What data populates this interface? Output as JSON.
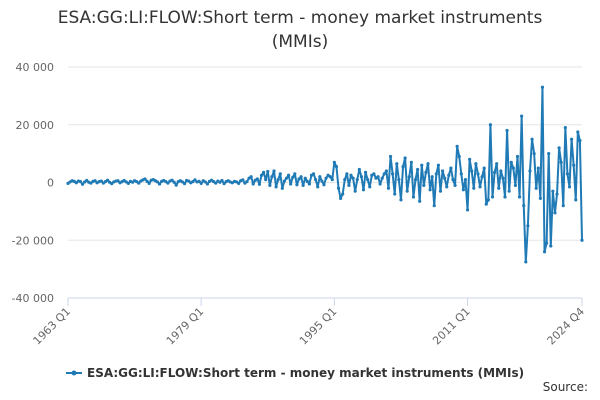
{
  "chart_data": {
    "type": "line",
    "title": "ESA:GG:LI:FLOW:Short term - money market instruments (MMIs)",
    "source": "Source:",
    "categories": [
      "1963 Q1",
      null,
      null,
      null,
      null,
      null,
      null,
      null,
      null,
      null,
      null,
      null,
      null,
      null,
      null,
      null,
      null,
      null,
      null,
      null,
      null,
      null,
      null,
      null,
      null,
      null,
      null,
      null,
      null,
      null,
      null,
      null,
      null,
      null,
      null,
      null,
      null,
      null,
      null,
      null,
      null,
      null,
      null,
      null,
      null,
      null,
      null,
      null,
      null,
      null,
      null,
      null,
      null,
      null,
      null,
      null,
      null,
      null,
      null,
      null,
      null,
      null,
      null,
      null,
      "1979 Q1",
      null,
      null,
      null,
      null,
      null,
      null,
      null,
      null,
      null,
      null,
      null,
      null,
      null,
      null,
      null,
      null,
      null,
      null,
      null,
      null,
      null,
      null,
      null,
      null,
      null,
      null,
      null,
      null,
      null,
      null,
      null,
      null,
      null,
      null,
      null,
      null,
      null,
      null,
      null,
      null,
      null,
      null,
      null,
      null,
      null,
      null,
      null,
      null,
      null,
      null,
      null,
      null,
      null,
      null,
      null,
      null,
      null,
      null,
      null,
      null,
      null,
      null,
      null,
      "1995 Q1",
      null,
      null,
      null,
      null,
      null,
      null,
      null,
      null,
      null,
      null,
      null,
      null,
      null,
      null,
      null,
      null,
      null,
      null,
      null,
      null,
      null,
      null,
      null,
      null,
      null,
      null,
      null,
      null,
      null,
      null,
      null,
      null,
      null,
      null,
      null,
      null,
      null,
      null,
      null,
      null,
      null,
      null,
      null,
      null,
      null,
      null,
      null,
      null,
      null,
      null,
      null,
      null,
      null,
      null,
      null,
      null,
      null,
      null,
      null,
      null,
      null,
      null,
      null,
      "2011 Q1",
      null,
      null,
      null,
      null,
      null,
      null,
      null,
      null,
      null,
      null,
      null,
      null,
      null,
      null,
      null,
      null,
      null,
      null,
      null,
      null,
      null,
      null,
      null,
      null,
      null,
      null,
      null,
      null,
      null,
      null,
      null,
      null,
      null,
      null,
      null,
      null,
      null,
      null,
      null,
      null,
      null,
      null,
      null,
      null,
      null,
      null,
      null,
      null,
      null,
      null,
      null,
      null,
      null,
      null,
      "2024 Q4"
    ],
    "series": [
      {
        "name": "ESA:GG:LI:FLOW:Short term - money market instruments (MMIs)",
        "color": "#1f7ab5",
        "values": [
          -300,
          200,
          600,
          400,
          -100,
          500,
          300,
          -600,
          200,
          700,
          100,
          -200,
          400,
          600,
          -100,
          300,
          500,
          -200,
          300,
          800,
          100,
          -400,
          200,
          500,
          600,
          -100,
          300,
          700,
          200,
          -300,
          400,
          100,
          600,
          300,
          -200,
          500,
          900,
          1200,
          400,
          -300,
          800,
          1000,
          600,
          200,
          -500,
          400,
          700,
          300,
          -200,
          500,
          800,
          100,
          -900,
          300,
          600,
          200,
          -400,
          700,
          500,
          -100,
          300,
          900,
          200,
          400,
          -300,
          600,
          200,
          -500,
          400,
          800,
          300,
          -200,
          500,
          100,
          700,
          -400,
          300,
          600,
          200,
          -100,
          400,
          200,
          -300,
          600,
          900,
          -200,
          300,
          1500,
          2000,
          -500,
          800,
          1200,
          -600,
          2500,
          3500,
          1000,
          3800,
          -1000,
          2000,
          4000,
          -1500,
          1000,
          3000,
          -2000,
          500,
          1500,
          2500,
          -500,
          1800,
          3000,
          -800,
          1200,
          2000,
          -1000,
          1500,
          400,
          -500,
          2500,
          3000,
          1000,
          -1500,
          2000,
          500,
          -800,
          1500,
          2500,
          2000,
          1000,
          7000,
          5500,
          -2000,
          -5500,
          -4000,
          1000,
          3000,
          -1000,
          2500,
          1500,
          -3000,
          1000,
          4500,
          2000,
          -2500,
          3500,
          1000,
          -1500,
          2500,
          3000,
          1500,
          2000,
          -500,
          1500,
          3000,
          4000,
          -2000,
          9000,
          3000,
          -4000,
          6500,
          1000,
          -6000,
          5500,
          8500,
          -3000,
          2000,
          7000,
          -5000,
          1000,
          4500,
          -6500,
          6000,
          -1000,
          3500,
          6500,
          -2500,
          2000,
          -8000,
          3000,
          6000,
          -3000,
          4000,
          1500,
          -1500,
          2500,
          5000,
          1000,
          -1000,
          12500,
          9000,
          3000,
          -2500,
          1000,
          -9500,
          8000,
          4000,
          -2000,
          6500,
          3000,
          -1500,
          2000,
          5000,
          -7500,
          -6000,
          20000,
          -5000,
          3500,
          6500,
          -2000,
          4000,
          1500,
          -5000,
          18000,
          -3000,
          7000,
          5000,
          -1000,
          9000,
          -5000,
          23000,
          -8000,
          -27500,
          -15000,
          4000,
          15000,
          10000,
          -2000,
          5000,
          -5500,
          33000,
          -24000,
          -21000,
          10000,
          -22000,
          -3000,
          -10500,
          -4000,
          12000,
          7000,
          -8000,
          19000,
          3000,
          -1500,
          15000,
          6000,
          -6000,
          17500,
          14500,
          -20000
        ]
      }
    ],
    "ylim": [
      -40000,
      40000
    ],
    "yticks": [
      {
        "value": -40000,
        "label": "-40 000"
      },
      {
        "value": -20000,
        "label": "-20 000"
      },
      0,
      {
        "value": 20000,
        "label": "20 000"
      },
      {
        "value": 40000,
        "label": "40 000"
      }
    ],
    "grid": true
  }
}
